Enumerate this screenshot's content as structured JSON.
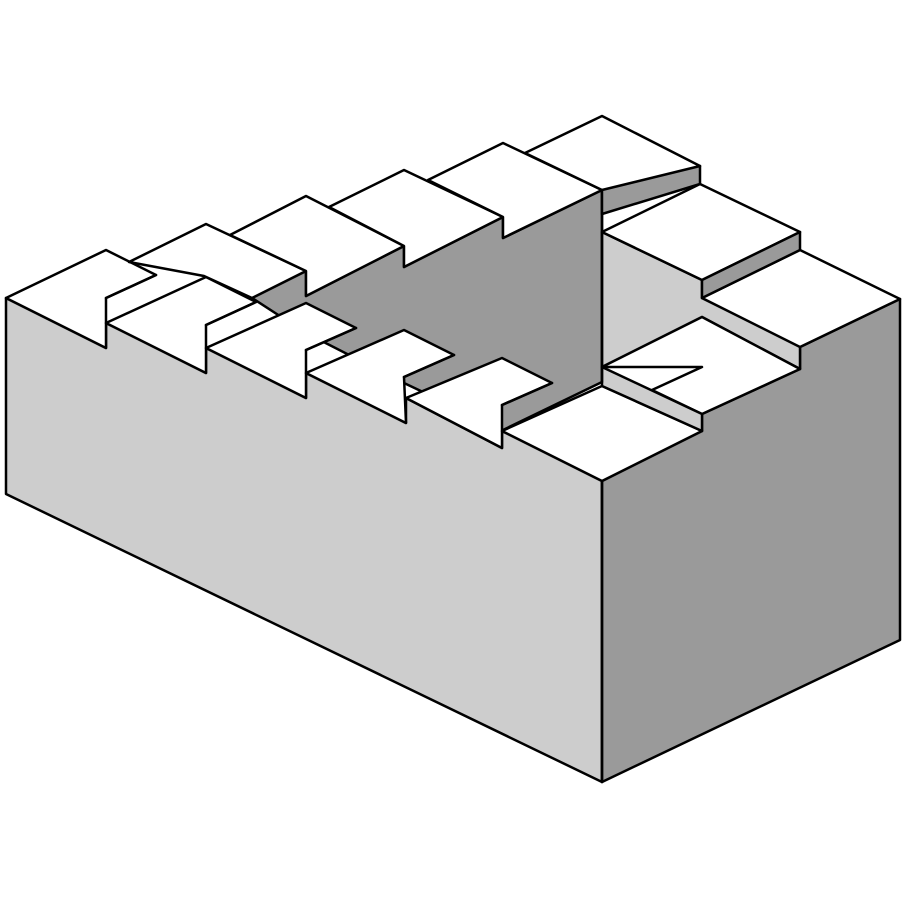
{
  "figure": {
    "subject": "penrose-stairs",
    "step_count": 15,
    "colors": {
      "background": "#ffffff",
      "step_top": "#ffffff",
      "light_face": "#cdcdcd",
      "dark_face": "#9a9a9a",
      "outline": "#000000"
    }
  }
}
